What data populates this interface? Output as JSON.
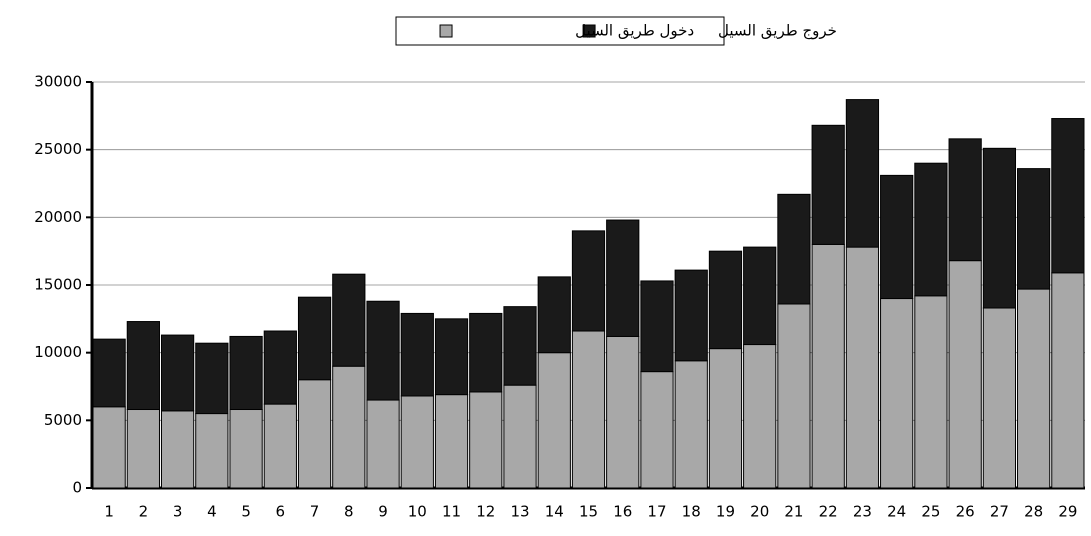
{
  "chart_data": {
    "type": "bar",
    "stacked": true,
    "categories": [
      1,
      2,
      3,
      4,
      5,
      6,
      7,
      8,
      9,
      10,
      11,
      12,
      13,
      14,
      15,
      16,
      17,
      18,
      19,
      20,
      21,
      22,
      23,
      24,
      25,
      26,
      27,
      28,
      29
    ],
    "series": [
      {
        "name": "دخول طريق السيل",
        "color": "#a8a8a8",
        "values": [
          6000,
          5800,
          5700,
          5500,
          5800,
          6200,
          8000,
          9000,
          6500,
          6800,
          6900,
          7100,
          7600,
          10000,
          11600,
          11200,
          8600,
          9400,
          10300,
          10600,
          13600,
          18000,
          17800,
          14000,
          14200,
          16800,
          13300,
          14700,
          15900
        ]
      },
      {
        "name": "خروج طريق السيل",
        "color": "#1a1a1a",
        "values": [
          5000,
          6500,
          5600,
          5200,
          5400,
          5400,
          6100,
          6800,
          7300,
          6100,
          5600,
          5800,
          5800,
          5600,
          7400,
          8600,
          6700,
          6700,
          7200,
          7200,
          8100,
          8800,
          10900,
          9100,
          9800,
          9000,
          11800,
          8900,
          11400
        ]
      }
    ],
    "ylim": [
      0,
      30000
    ],
    "yticks": [
      0,
      5000,
      10000,
      15000,
      20000,
      25000,
      30000
    ],
    "grid": true,
    "legend": "top"
  }
}
